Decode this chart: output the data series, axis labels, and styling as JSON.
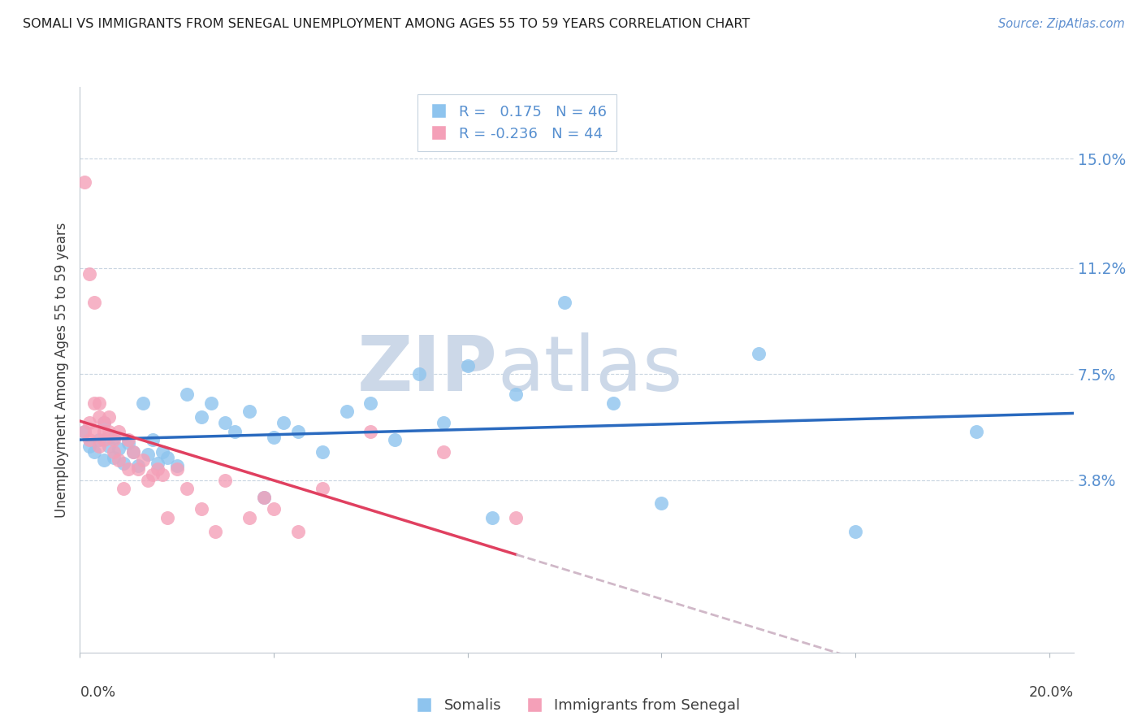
{
  "title": "SOMALI VS IMMIGRANTS FROM SENEGAL UNEMPLOYMENT AMONG AGES 55 TO 59 YEARS CORRELATION CHART",
  "source": "Source: ZipAtlas.com",
  "ylabel": "Unemployment Among Ages 55 to 59 years",
  "ytick_values": [
    0.038,
    0.075,
    0.112,
    0.15
  ],
  "ytick_labels": [
    "3.8%",
    "7.5%",
    "11.2%",
    "15.0%"
  ],
  "xtick_values": [
    0.0,
    0.04,
    0.08,
    0.12,
    0.16,
    0.2
  ],
  "xlim": [
    0.0,
    0.205
  ],
  "ylim": [
    -0.022,
    0.175
  ],
  "somali_color": "#8ec4ee",
  "senegal_color": "#f4a0b8",
  "somali_line_color": "#2a6abf",
  "senegal_line_color": "#e04060",
  "senegal_line_dashed_color": "#d0b8c8",
  "legend_R_somali": "R =   0.175",
  "legend_N_somali": "N = 46",
  "legend_R_senegal": "R = -0.236",
  "legend_N_senegal": "N = 44",
  "background_color": "#ffffff",
  "watermark_zip": "ZIP",
  "watermark_atlas": "atlas",
  "watermark_color": "#ccd8e8",
  "grid_color": "#c8d4e0",
  "title_color": "#202020",
  "source_color": "#6090d0",
  "axis_label_color": "#404040",
  "right_tick_color": "#5890d0",
  "somali_x": [
    0.001,
    0.002,
    0.003,
    0.004,
    0.005,
    0.005,
    0.006,
    0.007,
    0.007,
    0.008,
    0.009,
    0.01,
    0.011,
    0.012,
    0.013,
    0.014,
    0.015,
    0.016,
    0.017,
    0.018,
    0.02,
    0.022,
    0.025,
    0.027,
    0.03,
    0.032,
    0.035,
    0.038,
    0.04,
    0.042,
    0.045,
    0.05,
    0.055,
    0.06,
    0.065,
    0.07,
    0.075,
    0.08,
    0.085,
    0.09,
    0.1,
    0.11,
    0.12,
    0.14,
    0.16,
    0.185
  ],
  "somali_y": [
    0.055,
    0.05,
    0.048,
    0.052,
    0.045,
    0.058,
    0.05,
    0.046,
    0.053,
    0.049,
    0.044,
    0.051,
    0.048,
    0.043,
    0.065,
    0.047,
    0.052,
    0.044,
    0.048,
    0.046,
    0.043,
    0.068,
    0.06,
    0.065,
    0.058,
    0.055,
    0.062,
    0.032,
    0.053,
    0.058,
    0.055,
    0.048,
    0.062,
    0.065,
    0.052,
    0.075,
    0.058,
    0.078,
    0.025,
    0.068,
    0.1,
    0.065,
    0.03,
    0.082,
    0.02,
    0.055
  ],
  "senegal_x": [
    0.001,
    0.001,
    0.002,
    0.002,
    0.002,
    0.003,
    0.003,
    0.003,
    0.004,
    0.004,
    0.004,
    0.005,
    0.005,
    0.005,
    0.006,
    0.006,
    0.007,
    0.007,
    0.008,
    0.008,
    0.009,
    0.01,
    0.01,
    0.011,
    0.012,
    0.013,
    0.014,
    0.015,
    0.016,
    0.017,
    0.018,
    0.02,
    0.022,
    0.025,
    0.028,
    0.03,
    0.035,
    0.038,
    0.04,
    0.045,
    0.05,
    0.06,
    0.075,
    0.09
  ],
  "senegal_y": [
    0.142,
    0.055,
    0.058,
    0.052,
    0.11,
    0.1,
    0.065,
    0.055,
    0.065,
    0.06,
    0.05,
    0.058,
    0.052,
    0.055,
    0.06,
    0.055,
    0.052,
    0.048,
    0.045,
    0.055,
    0.035,
    0.052,
    0.042,
    0.048,
    0.042,
    0.045,
    0.038,
    0.04,
    0.042,
    0.04,
    0.025,
    0.042,
    0.035,
    0.028,
    0.02,
    0.038,
    0.025,
    0.032,
    0.028,
    0.02,
    0.035,
    0.055,
    0.048,
    0.025
  ]
}
